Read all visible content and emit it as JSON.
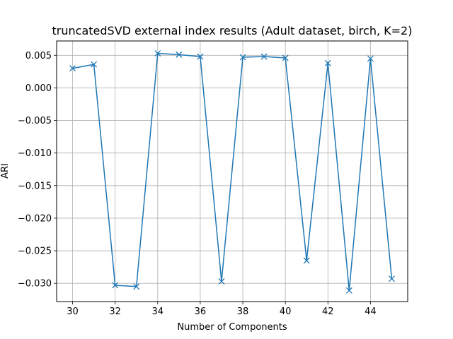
{
  "chart_data": {
    "type": "line",
    "title": "truncatedSVD external index results (Adult dataset, birch, K=2)",
    "xlabel": "Number of Components",
    "ylabel": "ARI",
    "xlim": [
      29.25,
      45.75
    ],
    "ylim": [
      -0.0328,
      0.0072
    ],
    "xticks": [
      30,
      32,
      34,
      36,
      38,
      40,
      42,
      44
    ],
    "xtick_labels": [
      "30",
      "32",
      "34",
      "36",
      "38",
      "40",
      "42",
      "44"
    ],
    "yticks": [
      0.005,
      0.0,
      -0.005,
      -0.01,
      -0.015,
      -0.02,
      -0.025,
      -0.03
    ],
    "ytick_labels": [
      "0.005",
      "0.000",
      "−0.005",
      "−0.010",
      "−0.015",
      "−0.020",
      "−0.025",
      "−0.030"
    ],
    "grid": true,
    "color": "#1f77b4",
    "marker": "x",
    "series": [
      {
        "x": [
          30,
          31,
          32,
          33,
          34,
          35,
          36,
          37,
          38,
          39,
          40,
          41,
          42,
          43,
          44,
          45
        ],
        "values": [
          0.003,
          0.0036,
          -0.0303,
          -0.0305,
          0.0053,
          0.0051,
          0.0048,
          -0.0297,
          0.0047,
          0.0048,
          0.0046,
          -0.0265,
          0.0038,
          -0.0311,
          0.0045,
          -0.0293
        ]
      }
    ]
  }
}
